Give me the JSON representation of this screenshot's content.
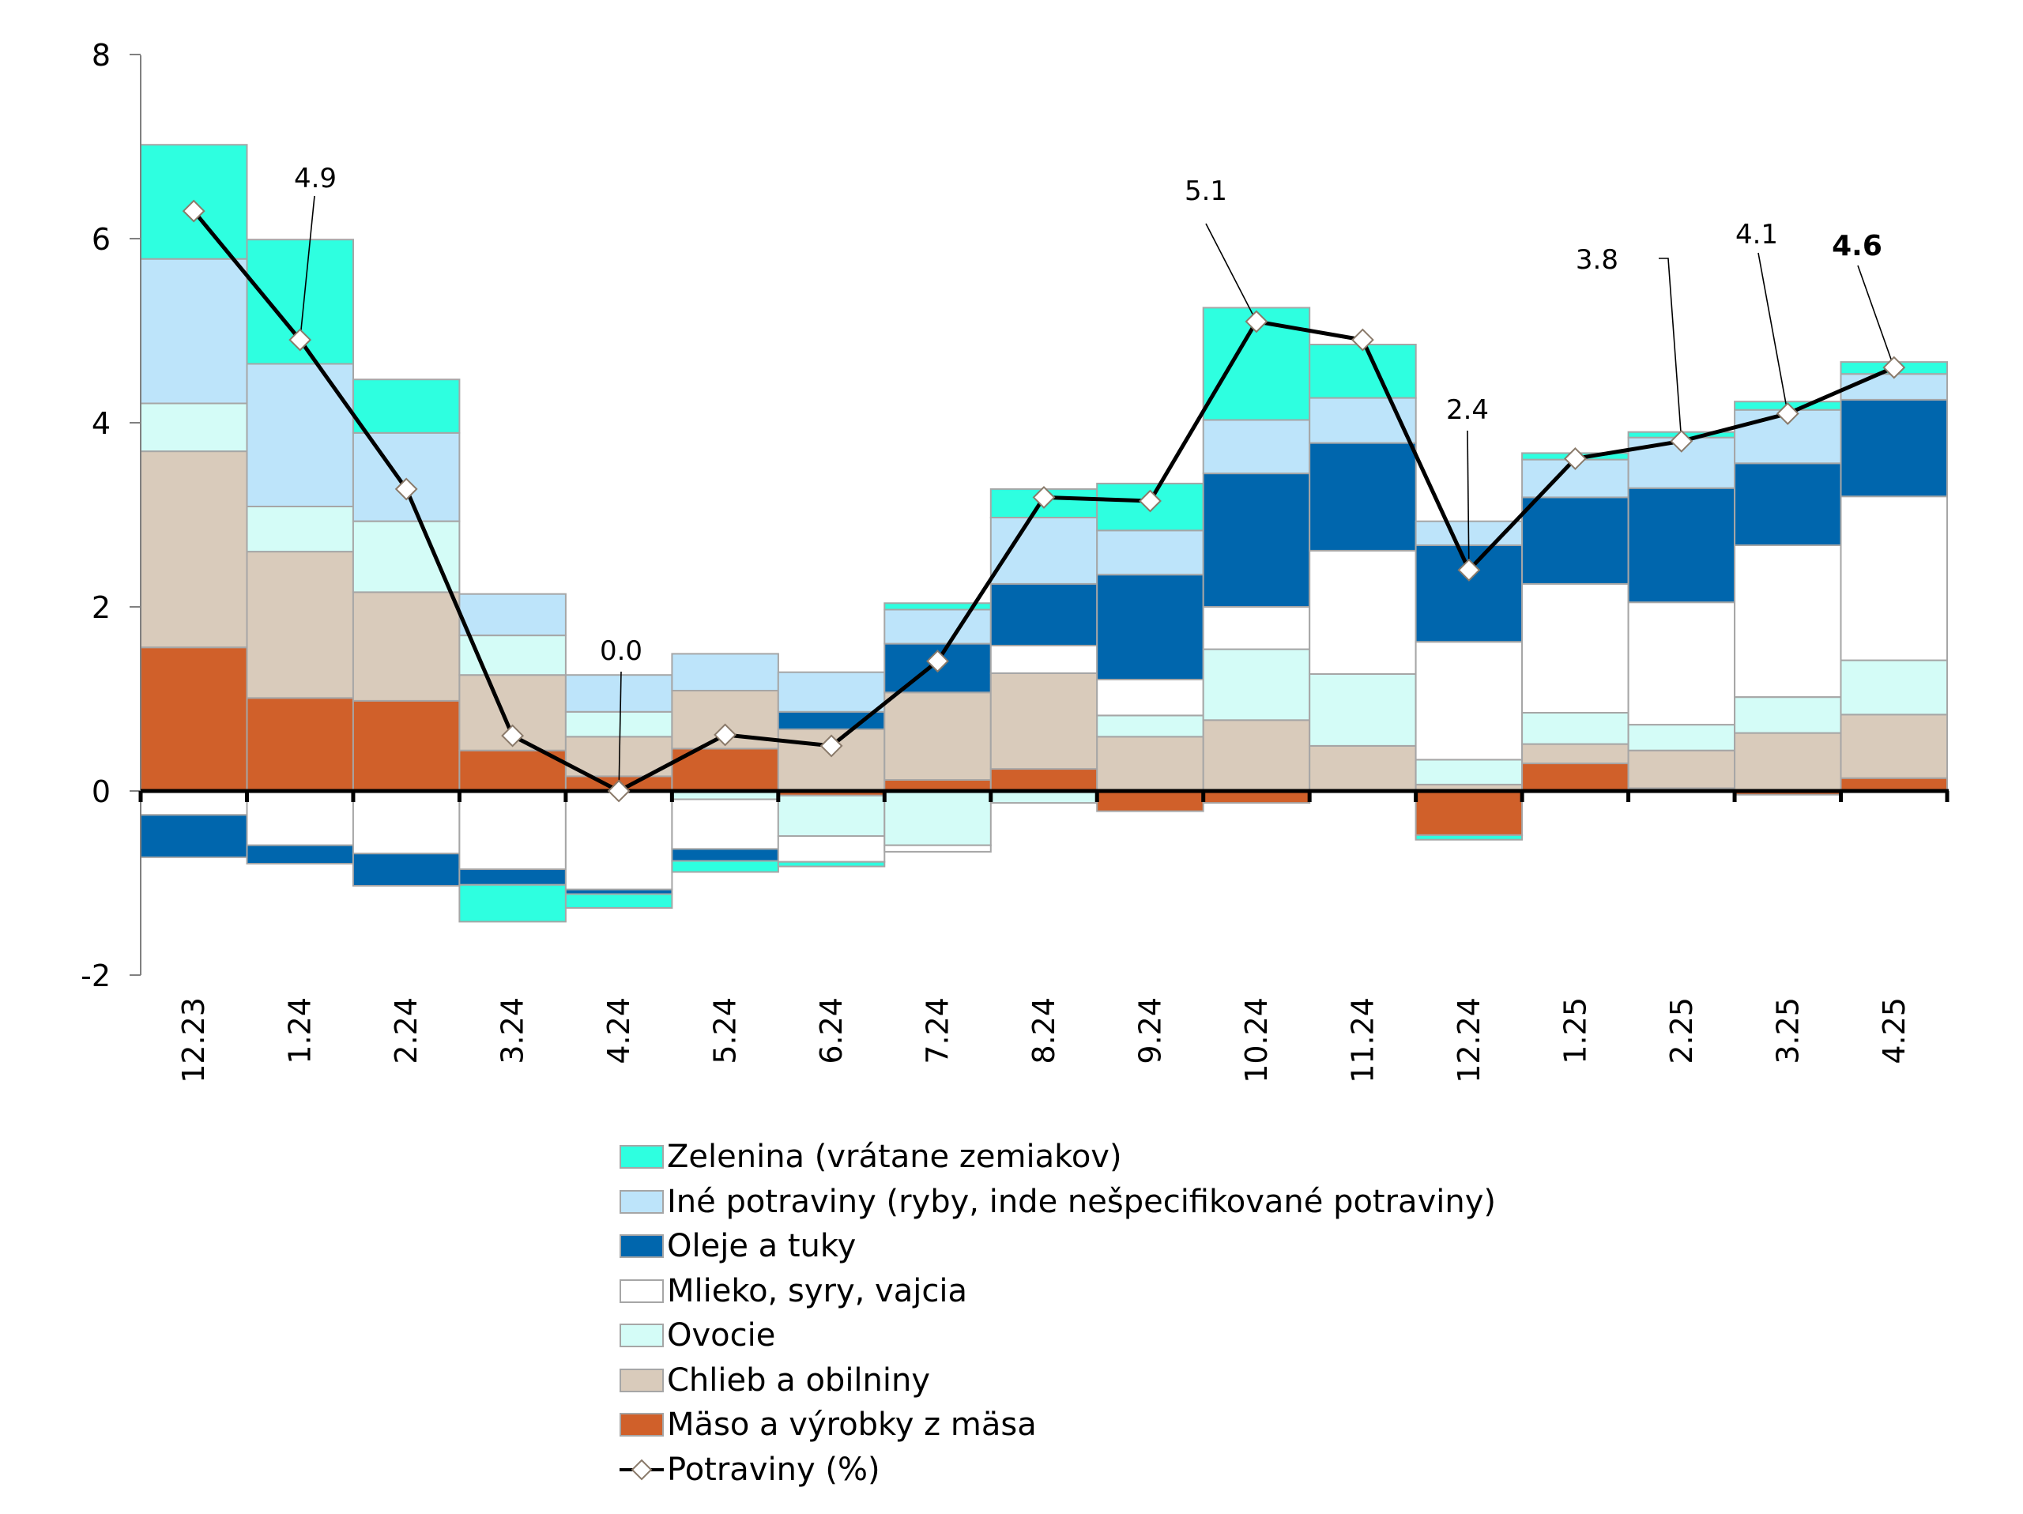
{
  "chart_data": {
    "type": "bar",
    "stacked": true,
    "title": "",
    "xlabel": "",
    "ylabel": "",
    "ylim": [
      -2,
      8
    ],
    "yticks": [
      "8",
      "6",
      "4",
      "2",
      "0",
      "-2"
    ],
    "ytick_values": [
      8,
      6,
      4,
      2,
      0,
      -2
    ],
    "grid": false,
    "legend_position": "bottom",
    "categories": [
      "12.23",
      "1.24",
      "2.24",
      "3.24",
      "4.24",
      "5.24",
      "6.24",
      "7.24",
      "8.24",
      "9.24",
      "10.24",
      "11.24",
      "12.24",
      "1.25",
      "2.25",
      "3.25",
      "4.25"
    ],
    "series": [
      {
        "key": "meat",
        "name": "Mäso a výrobky z mäsa",
        "color": "#d0602a",
        "values": [
          1.56,
          1.01,
          0.98,
          0.44,
          0.16,
          0.46,
          -0.05,
          0.12,
          0.24,
          -0.22,
          -0.13,
          0.0,
          -0.48,
          0.3,
          0.03,
          -0.04,
          0.14
        ]
      },
      {
        "key": "bread",
        "name": "Chlieb a obilniny",
        "color": "#d9cbbb",
        "values": [
          2.13,
          1.59,
          1.18,
          0.82,
          0.43,
          0.63,
          0.67,
          0.95,
          1.04,
          0.59,
          0.77,
          0.49,
          0.07,
          0.21,
          0.41,
          0.63,
          0.69
        ]
      },
      {
        "key": "fruit",
        "name": "Ovocie",
        "color": "#d4fcf7",
        "values": [
          0.52,
          0.49,
          0.77,
          0.43,
          0.27,
          -0.09,
          -0.44,
          -0.59,
          -0.13,
          0.23,
          0.77,
          0.78,
          0.27,
          0.34,
          0.28,
          0.39,
          0.59
        ]
      },
      {
        "key": "milk",
        "name": "Mlieko, syry, vajcia",
        "color": "#ffffff",
        "values": [
          -0.26,
          -0.59,
          -0.68,
          -0.85,
          -1.07,
          -0.54,
          -0.28,
          -0.07,
          0.3,
          0.39,
          0.46,
          1.34,
          1.28,
          1.4,
          1.33,
          1.65,
          1.78
        ]
      },
      {
        "key": "oils",
        "name": "Oleje a tuky",
        "color": "#0066ad",
        "values": [
          -0.46,
          -0.2,
          -0.35,
          -0.17,
          -0.05,
          -0.13,
          0.19,
          0.53,
          0.67,
          1.14,
          1.45,
          1.17,
          1.05,
          0.94,
          1.24,
          0.89,
          1.05
        ]
      },
      {
        "key": "other",
        "name": "Iné potraviny (ryby, inde nešpecifikované potraviny)",
        "color": "#bde4fa",
        "values": [
          1.57,
          1.55,
          0.96,
          0.45,
          0.4,
          0.4,
          0.43,
          0.37,
          0.72,
          0.48,
          0.58,
          0.49,
          0.26,
          0.41,
          0.55,
          0.58,
          0.28
        ]
      },
      {
        "key": "veg",
        "name": "Zelenina (vrátane zemiakov)",
        "color": "#2effe0",
        "values": [
          1.24,
          1.35,
          0.58,
          -0.4,
          -0.15,
          -0.12,
          -0.05,
          0.07,
          0.31,
          0.51,
          1.22,
          0.58,
          -0.05,
          0.07,
          0.06,
          0.09,
          0.13
        ]
      }
    ],
    "line": {
      "name": "Potraviny (%)",
      "color": "#000000",
      "values": [
        6.3,
        4.9,
        3.28,
        0.6,
        0.0,
        0.61,
        0.49,
        1.41,
        3.19,
        3.15,
        5.1,
        4.9,
        2.4,
        3.61,
        3.8,
        4.1,
        4.6
      ]
    },
    "annotations": [
      {
        "category": "1.24",
        "text": "4.9",
        "bold": false
      },
      {
        "category": "4.24",
        "text": "0.0",
        "bold": false
      },
      {
        "category": "10.24",
        "text": "5.1",
        "bold": false
      },
      {
        "category": "12.24",
        "text": "2.4",
        "bold": false
      },
      {
        "category": "2.25",
        "text": "3.8",
        "bold": false
      },
      {
        "category": "3.25",
        "text": "4.1",
        "bold": false
      },
      {
        "category": "4.25",
        "text": "4.6",
        "bold": true
      }
    ]
  },
  "legend": {
    "items": [
      {
        "label": "Zelenina (vrátane zemiakov)",
        "color": "#2effe0",
        "kind": "box"
      },
      {
        "label": "Iné potraviny (ryby, inde nešpecifikované potraviny)",
        "color": "#bde4fa",
        "kind": "box"
      },
      {
        "label": "Oleje a tuky",
        "color": "#0066ad",
        "kind": "box"
      },
      {
        "label": "Mlieko, syry, vajcia",
        "color": "#ffffff",
        "kind": "box"
      },
      {
        "label": "Ovocie",
        "color": "#d4fcf7",
        "kind": "box"
      },
      {
        "label": "Chlieb a obilniny",
        "color": "#d9cbbb",
        "kind": "box"
      },
      {
        "label": "Mäso a výrobky z mäsa",
        "color": "#d0602a",
        "kind": "box"
      },
      {
        "label": "Potraviny (%)",
        "color": "#000000",
        "kind": "line"
      }
    ]
  }
}
